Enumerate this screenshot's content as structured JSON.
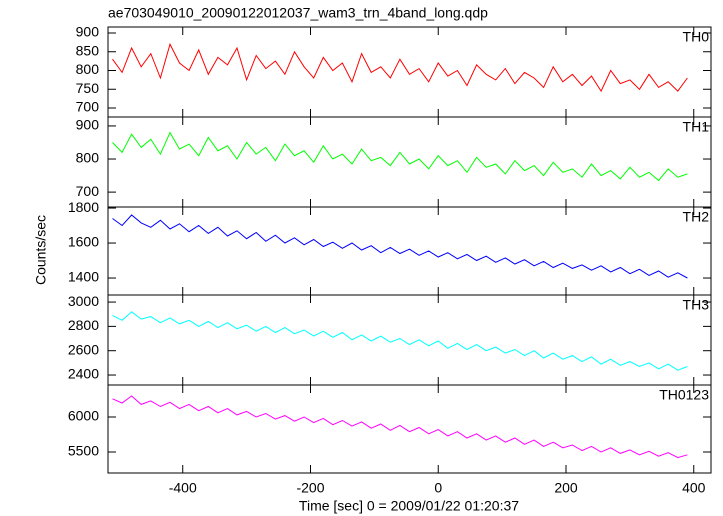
{
  "title": "ae703049010_20090122012037_wam3_trn_4band_long.qdp",
  "xlabel": "Time [sec] 0 = 2009/01/22 01:20:37",
  "ylabel": "Counts/sec",
  "chart_data": [
    {
      "type": "line",
      "name": "TH0",
      "color": "#ff0000",
      "xlim": [
        -517,
        427
      ],
      "xticks": [
        -400,
        -200,
        0,
        200,
        400
      ],
      "ylim": [
        676,
        916
      ],
      "yticks": [
        700,
        750,
        800,
        850,
        900
      ],
      "x": [
        -510,
        -495,
        -480,
        -465,
        -450,
        -435,
        -420,
        -405,
        -390,
        -375,
        -360,
        -345,
        -330,
        -315,
        -300,
        -285,
        -270,
        -255,
        -240,
        -225,
        -210,
        -195,
        -180,
        -165,
        -150,
        -135,
        -120,
        -105,
        -90,
        -75,
        -60,
        -45,
        -30,
        -15,
        0,
        15,
        30,
        45,
        60,
        75,
        90,
        105,
        120,
        135,
        150,
        165,
        180,
        195,
        210,
        225,
        240,
        255,
        270,
        285,
        300,
        315,
        330,
        345,
        360,
        375,
        390
      ],
      "values": [
        830,
        795,
        860,
        810,
        845,
        780,
        870,
        820,
        800,
        855,
        790,
        835,
        815,
        860,
        775,
        840,
        805,
        825,
        790,
        850,
        810,
        780,
        835,
        800,
        820,
        770,
        845,
        795,
        810,
        780,
        830,
        790,
        805,
        770,
        820,
        785,
        800,
        760,
        815,
        790,
        775,
        805,
        765,
        795,
        780,
        755,
        810,
        770,
        790,
        760,
        785,
        745,
        800,
        765,
        775,
        750,
        790,
        755,
        770,
        745,
        780
      ]
    },
    {
      "type": "line",
      "name": "TH1",
      "color": "#00ff00",
      "xlim": [
        -517,
        427
      ],
      "xticks": [
        -400,
        -200,
        0,
        200,
        400
      ],
      "ylim": [
        655,
        927
      ],
      "yticks": [
        700,
        800,
        900
      ],
      "x": [
        -510,
        -495,
        -480,
        -465,
        -450,
        -435,
        -420,
        -405,
        -390,
        -375,
        -360,
        -345,
        -330,
        -315,
        -300,
        -285,
        -270,
        -255,
        -240,
        -225,
        -210,
        -195,
        -180,
        -165,
        -150,
        -135,
        -120,
        -105,
        -90,
        -75,
        -60,
        -45,
        -30,
        -15,
        0,
        15,
        30,
        45,
        60,
        75,
        90,
        105,
        120,
        135,
        150,
        165,
        180,
        195,
        210,
        225,
        240,
        255,
        270,
        285,
        300,
        315,
        330,
        345,
        360,
        375,
        390
      ],
      "values": [
        850,
        820,
        875,
        835,
        860,
        815,
        880,
        830,
        845,
        810,
        865,
        825,
        840,
        800,
        850,
        815,
        835,
        795,
        845,
        810,
        825,
        790,
        840,
        800,
        815,
        785,
        830,
        795,
        805,
        780,
        820,
        785,
        800,
        770,
        810,
        780,
        795,
        760,
        805,
        775,
        785,
        755,
        795,
        765,
        780,
        750,
        790,
        760,
        770,
        745,
        785,
        750,
        765,
        740,
        775,
        745,
        760,
        735,
        770,
        745,
        755
      ]
    },
    {
      "type": "line",
      "name": "TH2",
      "color": "#0000ff",
      "xlim": [
        -517,
        427
      ],
      "xticks": [
        -400,
        -200,
        0,
        200,
        400
      ],
      "ylim": [
        1303,
        1806
      ],
      "yticks": [
        1400,
        1600,
        1800
      ],
      "x": [
        -510,
        -495,
        -480,
        -465,
        -450,
        -435,
        -420,
        -405,
        -390,
        -375,
        -360,
        -345,
        -330,
        -315,
        -300,
        -285,
        -270,
        -255,
        -240,
        -225,
        -210,
        -195,
        -180,
        -165,
        -150,
        -135,
        -120,
        -105,
        -90,
        -75,
        -60,
        -45,
        -30,
        -15,
        0,
        15,
        30,
        45,
        60,
        75,
        90,
        105,
        120,
        135,
        150,
        165,
        180,
        195,
        210,
        225,
        240,
        255,
        270,
        285,
        300,
        315,
        330,
        345,
        360,
        375,
        390
      ],
      "values": [
        1740,
        1700,
        1760,
        1715,
        1690,
        1730,
        1680,
        1710,
        1665,
        1700,
        1655,
        1690,
        1640,
        1670,
        1625,
        1660,
        1610,
        1645,
        1600,
        1630,
        1590,
        1620,
        1580,
        1605,
        1570,
        1600,
        1560,
        1585,
        1545,
        1575,
        1540,
        1565,
        1530,
        1555,
        1520,
        1545,
        1510,
        1535,
        1500,
        1525,
        1490,
        1515,
        1480,
        1505,
        1470,
        1495,
        1460,
        1485,
        1455,
        1475,
        1445,
        1470,
        1435,
        1460,
        1425,
        1450,
        1415,
        1440,
        1405,
        1430,
        1400
      ]
    },
    {
      "type": "line",
      "name": "TH3",
      "color": "#00ffff",
      "xlim": [
        -517,
        427
      ],
      "xticks": [
        -400,
        -200,
        0,
        200,
        400
      ],
      "ylim": [
        2318,
        3058
      ],
      "yticks": [
        2400,
        2600,
        2800,
        3000
      ],
      "x": [
        -510,
        -495,
        -480,
        -465,
        -450,
        -435,
        -420,
        -405,
        -390,
        -375,
        -360,
        -345,
        -330,
        -315,
        -300,
        -285,
        -270,
        -255,
        -240,
        -225,
        -210,
        -195,
        -180,
        -165,
        -150,
        -135,
        -120,
        -105,
        -90,
        -75,
        -60,
        -45,
        -30,
        -15,
        0,
        15,
        30,
        45,
        60,
        75,
        90,
        105,
        120,
        135,
        150,
        165,
        180,
        195,
        210,
        225,
        240,
        255,
        270,
        285,
        300,
        315,
        330,
        345,
        360,
        375,
        390
      ],
      "values": [
        2890,
        2850,
        2920,
        2860,
        2880,
        2830,
        2870,
        2820,
        2850,
        2800,
        2840,
        2790,
        2830,
        2780,
        2810,
        2760,
        2800,
        2750,
        2790,
        2740,
        2770,
        2720,
        2760,
        2710,
        2750,
        2690,
        2730,
        2680,
        2720,
        2670,
        2700,
        2650,
        2690,
        2640,
        2680,
        2620,
        2660,
        2610,
        2650,
        2600,
        2630,
        2580,
        2610,
        2560,
        2600,
        2540,
        2580,
        2530,
        2560,
        2510,
        2550,
        2490,
        2530,
        2480,
        2510,
        2470,
        2500,
        2450,
        2490,
        2440,
        2470
      ]
    },
    {
      "type": "line",
      "name": "TH0123",
      "color": "#ff00ff",
      "xlim": [
        -517,
        427
      ],
      "xticks": [
        -400,
        -200,
        0,
        200,
        400
      ],
      "ylim": [
        5200,
        6457
      ],
      "yticks": [
        5500,
        6000
      ],
      "x": [
        -510,
        -495,
        -480,
        -465,
        -450,
        -435,
        -420,
        -405,
        -390,
        -375,
        -360,
        -345,
        -330,
        -315,
        -300,
        -285,
        -270,
        -255,
        -240,
        -225,
        -210,
        -195,
        -180,
        -165,
        -150,
        -135,
        -120,
        -105,
        -90,
        -75,
        -60,
        -45,
        -30,
        -15,
        0,
        15,
        30,
        45,
        60,
        75,
        90,
        105,
        120,
        135,
        150,
        165,
        180,
        195,
        210,
        225,
        240,
        255,
        270,
        285,
        300,
        315,
        330,
        345,
        360,
        375,
        390
      ],
      "values": [
        6260,
        6200,
        6300,
        6180,
        6230,
        6150,
        6210,
        6120,
        6180,
        6090,
        6150,
        6060,
        6120,
        6030,
        6080,
        6000,
        6050,
        5970,
        6020,
        5940,
        6000,
        5920,
        5980,
        5890,
        5950,
        5870,
        5930,
        5840,
        5900,
        5810,
        5880,
        5790,
        5850,
        5760,
        5820,
        5730,
        5790,
        5700,
        5760,
        5670,
        5730,
        5640,
        5700,
        5610,
        5670,
        5580,
        5640,
        5560,
        5600,
        5520,
        5580,
        5500,
        5560,
        5480,
        5530,
        5460,
        5510,
        5440,
        5490,
        5420,
        5460
      ]
    }
  ]
}
